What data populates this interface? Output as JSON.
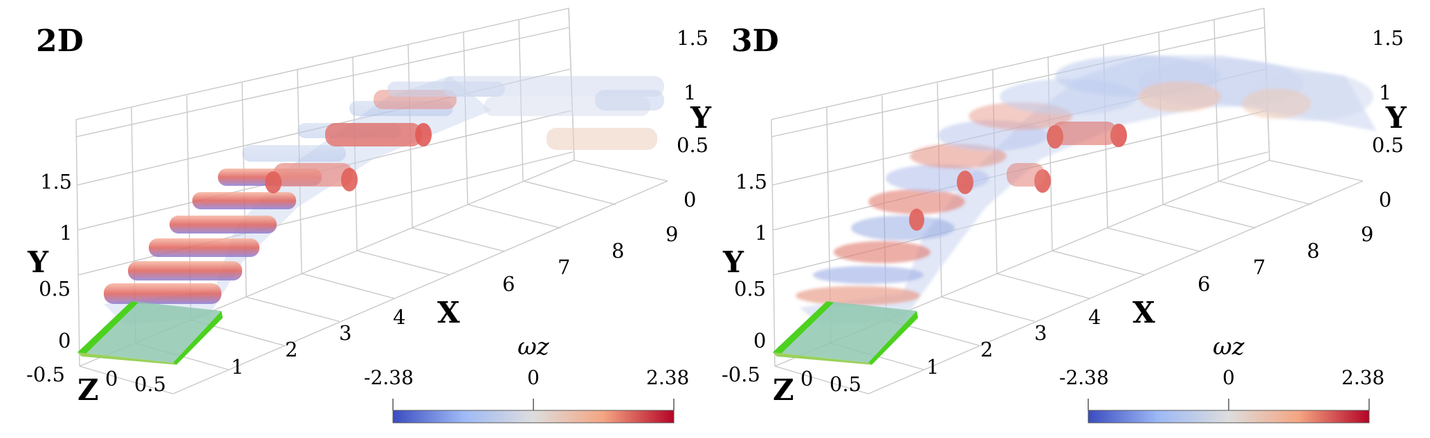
{
  "panels": [
    {
      "title": "2D",
      "y_left_ticks": [
        "1.5",
        "1",
        "0.5",
        "0",
        "-0.5"
      ],
      "y_right_ticks": [
        "1.5",
        "1",
        "0.5",
        "0"
      ],
      "x_ticks": [
        "1",
        "2",
        "3",
        "4",
        "6",
        "7",
        "8",
        "9"
      ],
      "z_ticks": [
        "0",
        "0.5"
      ],
      "axis_labels": {
        "x": "X",
        "y": "Y",
        "z": "Z"
      },
      "colorbar": {
        "variable": "ωz",
        "min": "-2.38",
        "mid": "0",
        "max": "2.38"
      }
    },
    {
      "title": "3D",
      "y_left_ticks": [
        "1.5",
        "1",
        "0.5",
        "0",
        "-0.5"
      ],
      "y_right_ticks": [
        "1.5",
        "1",
        "0.5",
        "0"
      ],
      "x_ticks": [
        "1",
        "2",
        "3",
        "4",
        "6",
        "7",
        "8",
        "9"
      ],
      "z_ticks": [
        "0",
        "0.5"
      ],
      "axis_labels": {
        "x": "X",
        "y": "Y",
        "z": "Z"
      },
      "colorbar": {
        "variable": "ωz",
        "min": "-2.38",
        "mid": "0",
        "max": "2.38"
      }
    }
  ],
  "colors": {
    "colormap_low": "#3b4cc0",
    "colormap_mid": "#dddddd",
    "colormap_high": "#b40426",
    "airfoil": "#4cd11f",
    "grid": "#c8c8c8"
  }
}
